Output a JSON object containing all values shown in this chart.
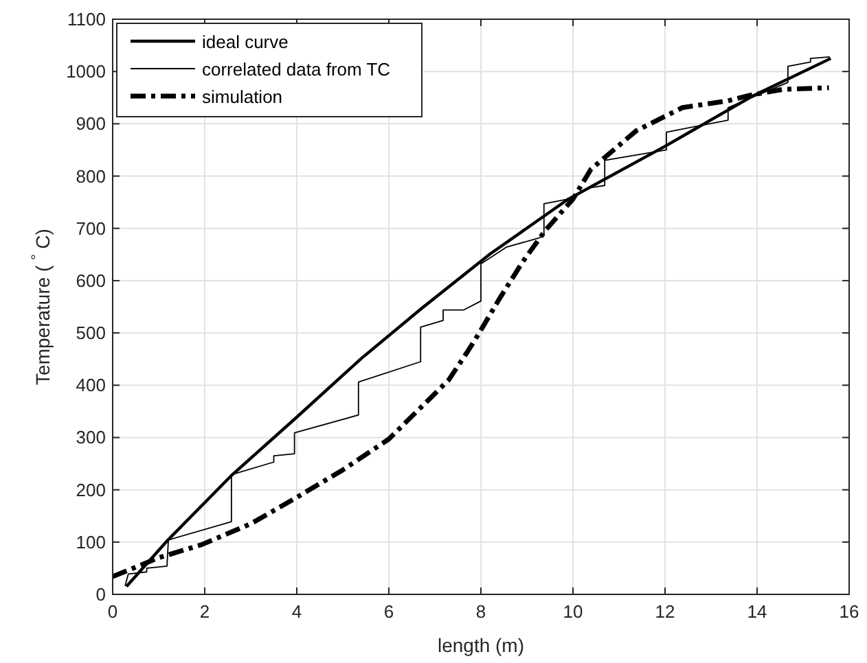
{
  "chart_data": {
    "type": "line",
    "xlabel": "length (m)",
    "ylabel": "Temperature ( $^{°}$ C)",
    "xlim": [
      0,
      16
    ],
    "xticks": [
      0,
      2,
      4,
      6,
      8,
      10,
      12,
      14,
      16
    ],
    "ylim": [
      0,
      1100
    ],
    "yticks": [
      0,
      100,
      200,
      300,
      400,
      500,
      600,
      700,
      800,
      900,
      1000,
      1100
    ],
    "grid": true,
    "legend": "top left",
    "series": [
      {
        "name": "ideal curve",
        "color": "#000000",
        "line_style": "solid",
        "x": [
          0.3,
          1.2,
          2.6,
          4,
          5.4,
          6.7,
          8.2,
          9.9,
          12,
          13.9,
          15.6
        ],
        "values": [
          15,
          104,
          229,
          339,
          451,
          546,
          651,
          756,
          857,
          953,
          1025
        ]
      },
      {
        "name": "correlated data from TC",
        "color": "#000000",
        "line_style": "solid",
        "x": [
          0.27,
          0.34,
          0.74,
          0.74,
          1.18,
          1.21,
          2.58,
          2.58,
          3.5,
          3.5,
          3.95,
          3.95,
          5.34,
          5.34,
          6.69,
          6.69,
          7.18,
          7.18,
          7.63,
          8.0,
          8.0,
          8.55,
          9.24,
          9.37,
          9.37,
          9.89,
          10.39,
          10.69,
          10.69,
          12.03,
          12.03,
          13.37,
          13.37,
          14.67,
          14.67,
          15.16,
          15.16,
          15.58
        ],
        "values": [
          16,
          39,
          43,
          50,
          54,
          104,
          139,
          229,
          253,
          265,
          269,
          309,
          343,
          406,
          445,
          511,
          524,
          544,
          544,
          561,
          632,
          664,
          681,
          686,
          747,
          756,
          778,
          782,
          830,
          850,
          884,
          907,
          931,
          979,
          1010,
          1018,
          1025,
          1028
        ]
      },
      {
        "name": "simulation",
        "color": "#000000",
        "line_style": "dashed",
        "x": [
          0,
          1,
          1.93,
          3,
          3.95,
          5,
          6,
          7.3,
          7.7,
          7.95,
          8.4,
          8.9,
          9.39,
          10,
          10.39,
          11.38,
          12.38,
          13.37,
          13.87,
          14.57,
          15.56
        ],
        "values": [
          34,
          70,
          95,
          135,
          183,
          238,
          297,
          410,
          463,
          498,
          565,
          635,
          695,
          756,
          813,
          887,
          931,
          944,
          955,
          966,
          969
        ]
      }
    ]
  }
}
